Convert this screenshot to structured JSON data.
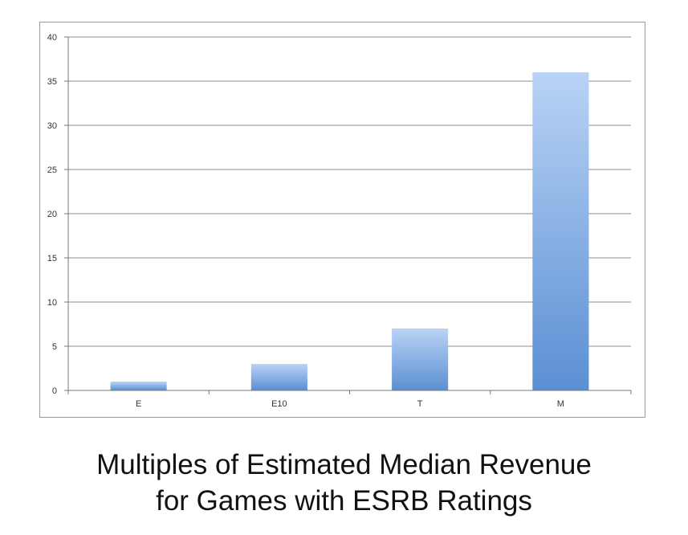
{
  "chart_data": {
    "type": "bar",
    "categories": [
      "E",
      "E10",
      "T",
      "M"
    ],
    "values": [
      1,
      3,
      7,
      36
    ],
    "ylim": [
      0,
      40
    ],
    "yticks": [
      0,
      5,
      10,
      15,
      20,
      25,
      30,
      35,
      40
    ],
    "grid": true,
    "legend": "none",
    "title_lines": [
      "Multiples of Estimated Median Revenue",
      "for Games with ESRB Ratings"
    ],
    "colors": {
      "bar_light": "#b9d3f5",
      "bar_dark": "#5b8fd3",
      "gridline": "#8c8c8c",
      "axis": "#7a7a7a"
    }
  }
}
